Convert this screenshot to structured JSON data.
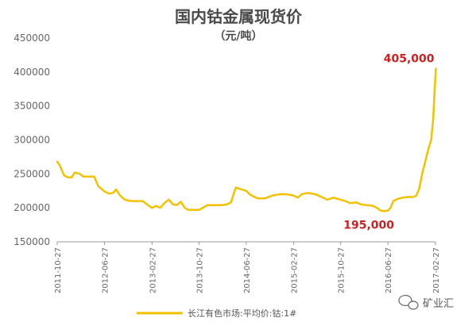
{
  "chart_data": {
    "type": "line",
    "title": "国内钴金属现货价",
    "subtitle": "（元/吨）",
    "ylim": [
      150000,
      450000
    ],
    "yticks": [
      "450000",
      "400000",
      "350000",
      "300000",
      "250000",
      "200000",
      "150000"
    ],
    "xticks": [
      "2011-10-27",
      "2012-06-27",
      "2013-02-27",
      "2013-10-27",
      "2014-06-27",
      "2015-02-27",
      "2015-10-27",
      "2016-06-27",
      "2017-02-27"
    ],
    "grid": false,
    "legend_position": "bottom",
    "series": [
      {
        "name": "长江有色市场:平均价:钴:1#",
        "color": "#f2c200",
        "points": [
          [
            "2011-10-27",
            268000
          ],
          [
            "2011-11-10",
            262000
          ],
          [
            "2011-12-01",
            248000
          ],
          [
            "2011-12-20",
            245000
          ],
          [
            "2012-01-10",
            245000
          ],
          [
            "2012-01-25",
            252000
          ],
          [
            "2012-02-20",
            250000
          ],
          [
            "2012-03-10",
            246000
          ],
          [
            "2012-04-05",
            246000
          ],
          [
            "2012-05-05",
            246000
          ],
          [
            "2012-05-25",
            232000
          ],
          [
            "2012-06-27",
            224000
          ],
          [
            "2012-07-20",
            221000
          ],
          [
            "2012-08-10",
            222000
          ],
          [
            "2012-08-25",
            227000
          ],
          [
            "2012-09-15",
            218000
          ],
          [
            "2012-10-10",
            212000
          ],
          [
            "2012-11-10",
            210000
          ],
          [
            "2012-12-10",
            210000
          ],
          [
            "2013-01-10",
            210000
          ],
          [
            "2013-02-10",
            203000
          ],
          [
            "2013-02-27",
            200000
          ],
          [
            "2013-03-20",
            203000
          ],
          [
            "2013-04-10",
            200000
          ],
          [
            "2013-05-05",
            208000
          ],
          [
            "2013-05-25",
            212000
          ],
          [
            "2013-06-15",
            205000
          ],
          [
            "2013-07-05",
            204000
          ],
          [
            "2013-07-25",
            209000
          ],
          [
            "2013-08-15",
            200000
          ],
          [
            "2013-09-01",
            197000
          ],
          [
            "2013-10-27",
            197000
          ],
          [
            "2013-11-15",
            200000
          ],
          [
            "2013-12-10",
            204000
          ],
          [
            "2014-01-15",
            204000
          ],
          [
            "2014-02-20",
            204000
          ],
          [
            "2014-03-20",
            205000
          ],
          [
            "2014-04-10",
            208000
          ],
          [
            "2014-04-25",
            222000
          ],
          [
            "2014-05-05",
            230000
          ],
          [
            "2014-05-25",
            228000
          ],
          [
            "2014-06-27",
            225000
          ],
          [
            "2014-07-20",
            219000
          ],
          [
            "2014-08-10",
            216000
          ],
          [
            "2014-08-25",
            214000
          ],
          [
            "2014-10-01",
            214000
          ],
          [
            "2014-11-10",
            218000
          ],
          [
            "2014-12-15",
            220000
          ],
          [
            "2015-01-20",
            220000
          ],
          [
            "2015-02-27",
            218000
          ],
          [
            "2015-03-20",
            215000
          ],
          [
            "2015-04-10",
            220000
          ],
          [
            "2015-05-10",
            222000
          ],
          [
            "2015-06-20",
            220000
          ],
          [
            "2015-07-20",
            216000
          ],
          [
            "2015-08-20",
            212000
          ],
          [
            "2015-09-20",
            215000
          ],
          [
            "2015-10-27",
            212000
          ],
          [
            "2015-11-20",
            210000
          ],
          [
            "2015-12-15",
            207000
          ],
          [
            "2016-01-15",
            208000
          ],
          [
            "2016-02-10",
            205000
          ],
          [
            "2016-03-10",
            204000
          ],
          [
            "2016-04-10",
            203000
          ],
          [
            "2016-05-01",
            200000
          ],
          [
            "2016-05-20",
            196000
          ],
          [
            "2016-06-10",
            195000
          ],
          [
            "2016-06-27",
            196000
          ],
          [
            "2016-07-10",
            200000
          ],
          [
            "2016-07-25",
            210000
          ],
          [
            "2016-08-15",
            213000
          ],
          [
            "2016-09-10",
            215000
          ],
          [
            "2016-10-10",
            216000
          ],
          [
            "2016-11-05",
            216000
          ],
          [
            "2016-11-20",
            218000
          ],
          [
            "2016-12-05",
            228000
          ],
          [
            "2016-12-20",
            250000
          ],
          [
            "2017-01-05",
            268000
          ],
          [
            "2017-01-20",
            285000
          ],
          [
            "2017-02-05",
            300000
          ],
          [
            "2017-02-15",
            330000
          ],
          [
            "2017-02-22",
            370000
          ],
          [
            "2017-03-01",
            405000
          ]
        ]
      }
    ],
    "annotations": [
      {
        "text": "405,000",
        "x": "2017-03-01",
        "y": 405000
      },
      {
        "text": "195,000",
        "x": "2016-06-10",
        "y": 195000
      }
    ]
  },
  "watermark": {
    "icon": "chat-bubble-icon",
    "text": "矿业汇"
  },
  "colors": {
    "line": "#f2c200",
    "annotation": "#cc1f1f",
    "axis": "#999999"
  }
}
